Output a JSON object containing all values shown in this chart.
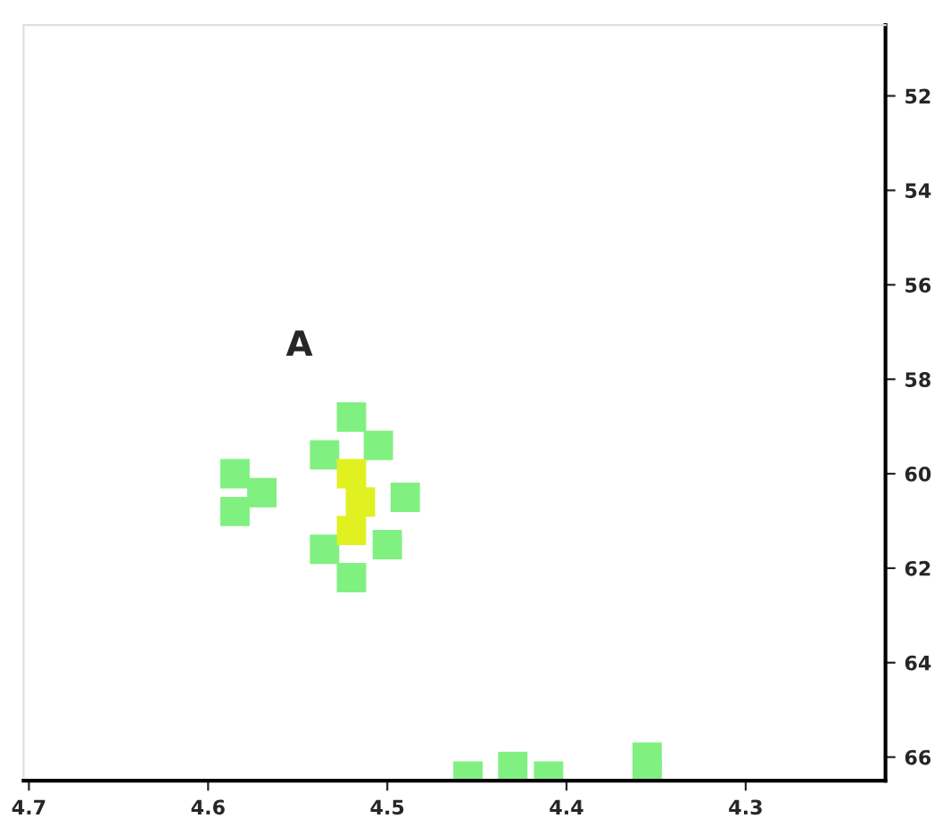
{
  "chart_data": {
    "type": "scatter",
    "marker": "square",
    "xlim": [
      4.703,
      4.222
    ],
    "ylim": [
      66.5,
      50.5
    ],
    "xticks": [
      4.7,
      4.6,
      4.5,
      4.4,
      4.3
    ],
    "yticks": [
      52,
      54,
      56,
      58,
      60,
      62,
      64,
      66
    ],
    "grid": false,
    "annotations": [
      "A"
    ],
    "series": [
      {
        "color": "#80f080",
        "x": [
          4.585,
          4.585,
          4.57,
          4.52,
          4.505,
          4.49,
          4.5,
          4.52,
          4.535,
          4.535,
          4.455,
          4.43,
          4.41,
          4.355,
          4.355
        ],
        "values": [
          60.0,
          60.8,
          60.4,
          58.8,
          59.4,
          60.5,
          61.5,
          62.2,
          59.6,
          61.6,
          66.4,
          66.2,
          66.4,
          66.0,
          66.4
        ]
      },
      {
        "color": "#e0f020",
        "x": [
          4.52,
          4.515,
          4.52
        ],
        "values": [
          60.0,
          60.6,
          61.2
        ]
      }
    ]
  }
}
